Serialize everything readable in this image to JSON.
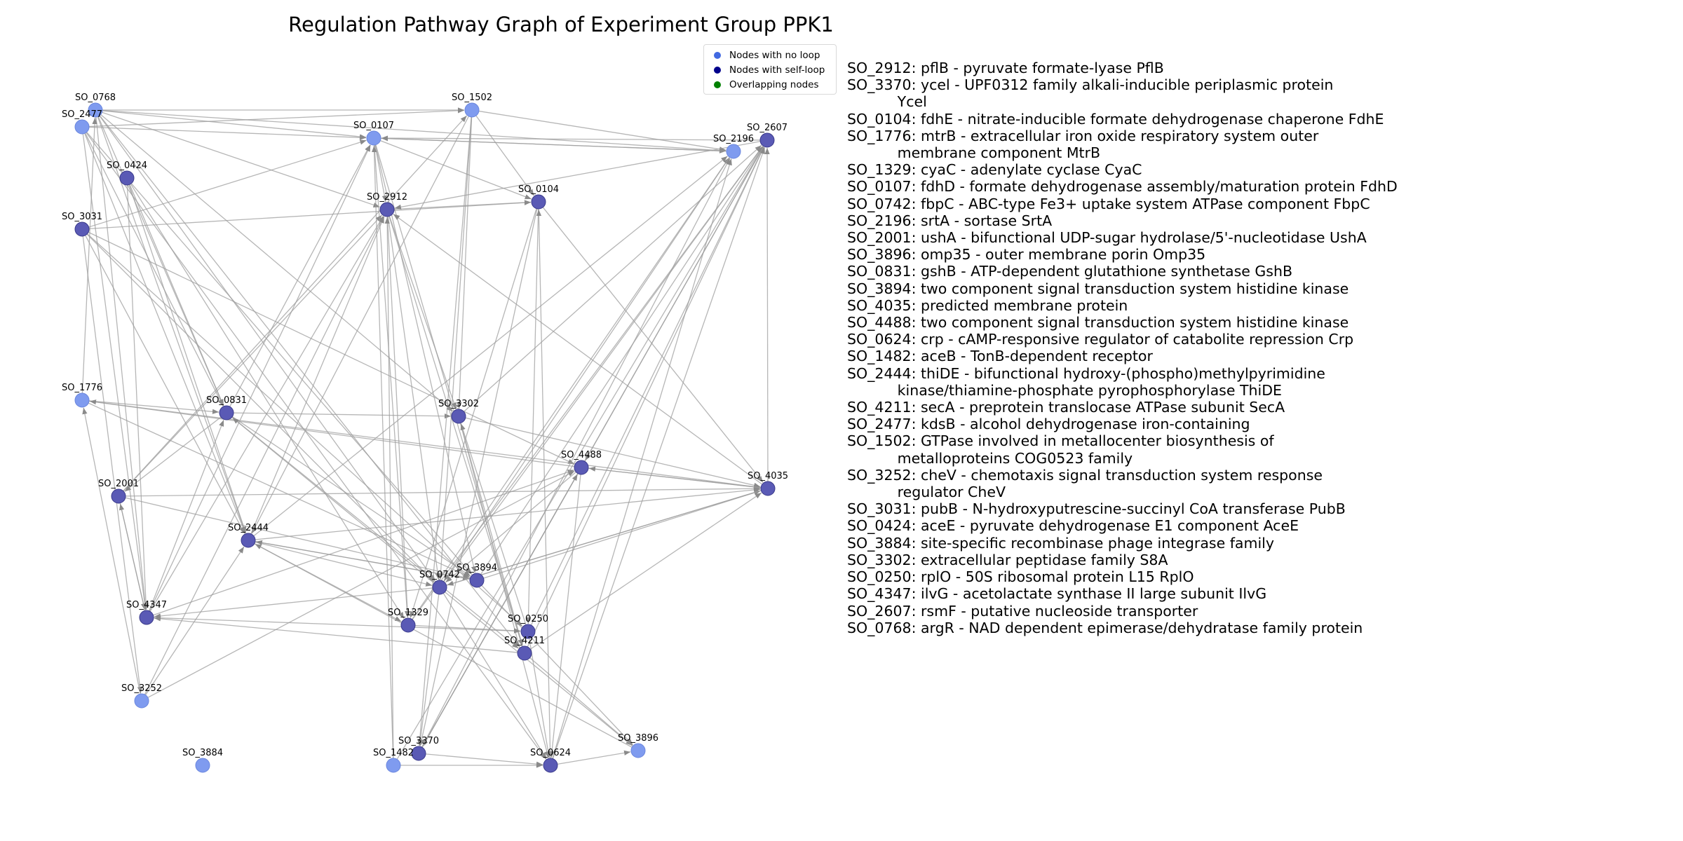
{
  "title": "Regulation Pathway Graph of Experiment Group PPK1",
  "legend": [
    {
      "label": "Nodes with no loop",
      "color": "#4169e1"
    },
    {
      "label": "Nodes with self-loop",
      "color": "#00008b"
    },
    {
      "label": "Overlapping nodes",
      "color": "#008000"
    }
  ],
  "colors": {
    "no_loop_node": "#7f9bef",
    "self_loop_node": "#5a5ab5",
    "edge": "#9e9e9e"
  },
  "nodes": [
    {
      "id": "SO_0768",
      "self_loop": false
    },
    {
      "id": "SO_2477",
      "self_loop": false
    },
    {
      "id": "SO_0424",
      "self_loop": true
    },
    {
      "id": "SO_3031",
      "self_loop": true
    },
    {
      "id": "SO_1776",
      "self_loop": false
    },
    {
      "id": "SO_2001",
      "self_loop": true
    },
    {
      "id": "SO_4347",
      "self_loop": true
    },
    {
      "id": "SO_3252",
      "self_loop": false
    },
    {
      "id": "SO_3884",
      "self_loop": false
    },
    {
      "id": "SO_0831",
      "self_loop": true
    },
    {
      "id": "SO_2444",
      "self_loop": true
    },
    {
      "id": "SO_0107",
      "self_loop": false
    },
    {
      "id": "SO_2912",
      "self_loop": true
    },
    {
      "id": "SO_1502",
      "self_loop": false
    },
    {
      "id": "SO_0104",
      "self_loop": true
    },
    {
      "id": "SO_3302",
      "self_loop": true
    },
    {
      "id": "SO_4488",
      "self_loop": true
    },
    {
      "id": "SO_0742",
      "self_loop": true
    },
    {
      "id": "SO_3894",
      "self_loop": true
    },
    {
      "id": "SO_1329",
      "self_loop": true
    },
    {
      "id": "SO_0250",
      "self_loop": true
    },
    {
      "id": "SO_4211",
      "self_loop": true
    },
    {
      "id": "SO_3370",
      "self_loop": true
    },
    {
      "id": "SO_1482",
      "self_loop": false
    },
    {
      "id": "SO_0624",
      "self_loop": true
    },
    {
      "id": "SO_3896",
      "self_loop": false
    },
    {
      "id": "SO_2196",
      "self_loop": false
    },
    {
      "id": "SO_2607",
      "self_loop": true
    },
    {
      "id": "SO_4035",
      "self_loop": true
    },
    {
      "id": "SO_2001",
      "self_loop": true
    }
  ],
  "edges": [
    [
      "SO_0768",
      "SO_1502"
    ],
    [
      "SO_0768",
      "SO_0107"
    ],
    [
      "SO_0768",
      "SO_2196"
    ],
    [
      "SO_0768",
      "SO_2912"
    ],
    [
      "SO_0768",
      "SO_0831"
    ],
    [
      "SO_0768",
      "SO_2444"
    ],
    [
      "SO_0768",
      "SO_3302"
    ],
    [
      "SO_0768",
      "SO_0742"
    ],
    [
      "SO_0768",
      "SO_4211"
    ],
    [
      "SO_0768",
      "SO_4347"
    ],
    [
      "SO_2477",
      "SO_0107"
    ],
    [
      "SO_2477",
      "SO_1502"
    ],
    [
      "SO_2477",
      "SO_0831"
    ],
    [
      "SO_2477",
      "SO_2444"
    ],
    [
      "SO_2477",
      "SO_3894"
    ],
    [
      "SO_2477",
      "SO_4347"
    ],
    [
      "SO_2477",
      "SO_0624"
    ],
    [
      "SO_0424",
      "SO_2444"
    ],
    [
      "SO_0424",
      "SO_0831"
    ],
    [
      "SO_0424",
      "SO_4347"
    ],
    [
      "SO_0424",
      "SO_1329"
    ],
    [
      "SO_3031",
      "SO_0107"
    ],
    [
      "SO_3031",
      "SO_0104"
    ],
    [
      "SO_3031",
      "SO_0742"
    ],
    [
      "SO_3031",
      "SO_4488"
    ],
    [
      "SO_3031",
      "SO_2444"
    ],
    [
      "SO_3031",
      "SO_0250"
    ],
    [
      "SO_3031",
      "SO_3252"
    ],
    [
      "SO_1776",
      "SO_0831"
    ],
    [
      "SO_1776",
      "SO_4035"
    ],
    [
      "SO_1776",
      "SO_3894"
    ],
    [
      "SO_1776",
      "SO_0768"
    ],
    [
      "SO_2001",
      "SO_2912"
    ],
    [
      "SO_2001",
      "SO_4035"
    ],
    [
      "SO_2001",
      "SO_3894"
    ],
    [
      "SO_2001",
      "SO_4347"
    ],
    [
      "SO_2001",
      "SO_1502"
    ],
    [
      "SO_4347",
      "SO_2912"
    ],
    [
      "SO_4347",
      "SO_0107"
    ],
    [
      "SO_4347",
      "SO_0250"
    ],
    [
      "SO_4347",
      "SO_4488"
    ],
    [
      "SO_4347",
      "SO_2001"
    ],
    [
      "SO_4347",
      "SO_0831"
    ],
    [
      "SO_3252",
      "SO_2912"
    ],
    [
      "SO_3252",
      "SO_4488"
    ],
    [
      "SO_3252",
      "SO_2444"
    ],
    [
      "SO_3252",
      "SO_1776"
    ],
    [
      "SO_0831",
      "SO_0107"
    ],
    [
      "SO_0831",
      "SO_3894"
    ],
    [
      "SO_0831",
      "SO_4211"
    ],
    [
      "SO_0831",
      "SO_3302"
    ],
    [
      "SO_0831",
      "SO_2001"
    ],
    [
      "SO_2444",
      "SO_2912"
    ],
    [
      "SO_2444",
      "SO_4035"
    ],
    [
      "SO_2444",
      "SO_3894"
    ],
    [
      "SO_2444",
      "SO_0742"
    ],
    [
      "SO_2444",
      "SO_2196"
    ],
    [
      "SO_2444",
      "SO_1329"
    ],
    [
      "SO_0107",
      "SO_2912"
    ],
    [
      "SO_0107",
      "SO_0104"
    ],
    [
      "SO_0107",
      "SO_2196"
    ],
    [
      "SO_0107",
      "SO_3894"
    ],
    [
      "SO_0107",
      "SO_1329"
    ],
    [
      "SO_0107",
      "SO_4211"
    ],
    [
      "SO_2912",
      "SO_0104"
    ],
    [
      "SO_2912",
      "SO_0742"
    ],
    [
      "SO_2912",
      "SO_3302"
    ],
    [
      "SO_2912",
      "SO_1329"
    ],
    [
      "SO_2912",
      "SO_4211"
    ],
    [
      "SO_1502",
      "SO_0104"
    ],
    [
      "SO_1502",
      "SO_0742"
    ],
    [
      "SO_1502",
      "SO_2444"
    ],
    [
      "SO_1502",
      "SO_3302"
    ],
    [
      "SO_1502",
      "SO_3370"
    ],
    [
      "SO_1502",
      "SO_2196"
    ],
    [
      "SO_0104",
      "SO_4035"
    ],
    [
      "SO_0104",
      "SO_3370"
    ],
    [
      "SO_0104",
      "SO_1329"
    ],
    [
      "SO_0104",
      "SO_0250"
    ],
    [
      "SO_3302",
      "SO_4035"
    ],
    [
      "SO_3302",
      "SO_0624"
    ],
    [
      "SO_3302",
      "SO_2607"
    ],
    [
      "SO_3302",
      "SO_4211"
    ],
    [
      "SO_4488",
      "SO_4035"
    ],
    [
      "SO_4488",
      "SO_0742"
    ],
    [
      "SO_4488",
      "SO_3370"
    ],
    [
      "SO_4488",
      "SO_0624"
    ],
    [
      "SO_4488",
      "SO_1776"
    ],
    [
      "SO_0742",
      "SO_4035"
    ],
    [
      "SO_0742",
      "SO_3370"
    ],
    [
      "SO_0742",
      "SO_0624"
    ],
    [
      "SO_0742",
      "SO_2607"
    ],
    [
      "SO_0742",
      "SO_4347"
    ],
    [
      "SO_3894",
      "SO_4035"
    ],
    [
      "SO_3894",
      "SO_2607"
    ],
    [
      "SO_3894",
      "SO_3896"
    ],
    [
      "SO_3894",
      "SO_2444"
    ],
    [
      "SO_1329",
      "SO_2607"
    ],
    [
      "SO_1329",
      "SO_0250"
    ],
    [
      "SO_1329",
      "SO_2196"
    ],
    [
      "SO_0250",
      "SO_2607"
    ],
    [
      "SO_0250",
      "SO_0624"
    ],
    [
      "SO_0250",
      "SO_3302"
    ],
    [
      "SO_4211",
      "SO_4035"
    ],
    [
      "SO_4211",
      "SO_2607"
    ],
    [
      "SO_4211",
      "SO_3896"
    ],
    [
      "SO_4211",
      "SO_4347"
    ],
    [
      "SO_3370",
      "SO_2607"
    ],
    [
      "SO_3370",
      "SO_0624"
    ],
    [
      "SO_3370",
      "SO_2196"
    ],
    [
      "SO_3370",
      "SO_4488"
    ],
    [
      "SO_1482",
      "SO_0624"
    ],
    [
      "SO_1482",
      "SO_2607"
    ],
    [
      "SO_1482",
      "SO_0107"
    ],
    [
      "SO_1482",
      "SO_2912"
    ],
    [
      "SO_0624",
      "SO_3896"
    ],
    [
      "SO_0624",
      "SO_2607"
    ],
    [
      "SO_0624",
      "SO_2196"
    ],
    [
      "SO_0624",
      "SO_0104"
    ],
    [
      "SO_3896",
      "SO_0831"
    ],
    [
      "SO_3896",
      "SO_2444"
    ],
    [
      "SO_4035",
      "SO_2912"
    ],
    [
      "SO_4035",
      "SO_4488"
    ],
    [
      "SO_4035",
      "SO_0742"
    ],
    [
      "SO_4035",
      "SO_2607"
    ],
    [
      "SO_2607",
      "SO_0107"
    ],
    [
      "SO_2607",
      "SO_2912"
    ],
    [
      "SO_2607",
      "SO_4488"
    ],
    [
      "SO_2196",
      "SO_0107"
    ],
    [
      "SO_2196",
      "SO_0742"
    ]
  ],
  "annotations": [
    "SO_2912: pflB - pyruvate formate-lyase PflB",
    "SO_3370: ycel - UPF0312 family alkali-inducible periplasmic protein\n           Ycel",
    "SO_0104: fdhE - nitrate-inducible formate dehydrogenase chaperone FdhE",
    "SO_1776: mtrB - extracellular iron oxide respiratory system outer\n           membrane component MtrB",
    "SO_1329: cyaC - adenylate cyclase CyaC",
    "SO_0107: fdhD - formate dehydrogenase assembly/maturation protein FdhD",
    "SO_0742: fbpC - ABC-type Fe3+ uptake system ATPase component FbpC",
    "SO_2196: srtA - sortase SrtA",
    "SO_2001: ushA - bifunctional UDP-sugar hydrolase/5'-nucleotidase UshA",
    "SO_3896: omp35 - outer membrane porin Omp35",
    "SO_0831: gshB - ATP-dependent glutathione synthetase GshB",
    "SO_3894: two component signal transduction system histidine kinase",
    "SO_4035: predicted membrane protein",
    "SO_4488: two component signal transduction system histidine kinase",
    "SO_0624: crp - cAMP-responsive regulator of catabolite repression Crp",
    "SO_1482: aceB - TonB-dependent receptor",
    "SO_2444: thiDE - bifunctional hydroxy-(phospho)methylpyrimidine\n           kinase/thiamine-phosphate pyrophosphorylase ThiDE",
    "SO_4211: secA - preprotein translocase ATPase subunit SecA",
    "SO_2477: kdsB - alcohol dehydrogenase iron-containing",
    "SO_1502: GTPase involved in metallocenter biosynthesis of\n           metalloproteins COG0523 family",
    "SO_3252: cheV - chemotaxis signal transduction system response\n           regulator CheV",
    "SO_3031: pubB - N-hydroxyputrescine-succinyl CoA transferase PubB",
    "SO_0424: aceE - pyruvate dehydrogenase E1 component AceE",
    "SO_3884: site-specific recombinase phage integrase family",
    "SO_3302: extracellular peptidase family S8A",
    "SO_0250: rplO - 50S ribosomal protein L15 RplO",
    "SO_4347: ilvG - acetolactate synthase II large subunit IlvG",
    "SO_2607: rsmF - putative nucleoside transporter",
    "SO_0768: argR - NAD dependent epimerase/dehydratase family protein"
  ]
}
